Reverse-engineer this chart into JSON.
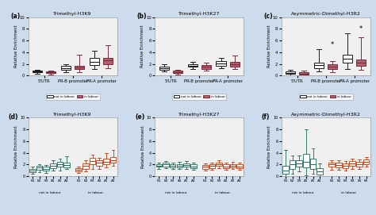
{
  "background_color": "#cddcec",
  "panel_bg": "#f0f0f0",
  "titles": {
    "a": "Trimethyl-H3K9",
    "b": "Trimethyl-H3K27",
    "c": "Asymmetric-Dimethyl-H3R2",
    "d": "Trimethyl-H3K9",
    "e": "Trimethyl-H3K27",
    "f": "Asymmetric-Dimethyl-H3R2"
  },
  "panels_abc": {
    "categories": [
      "5'UTR",
      "PR-B promoter",
      "PR-A promoter"
    ],
    "ylabel": "Relative Enrichment",
    "ylim": [
      0,
      10
    ],
    "yticks": [
      0,
      2,
      4,
      6,
      8,
      10
    ],
    "color_not_in_labour": "#1a1a1a",
    "color_in_labour": "#7a2a38",
    "color_in_labour_fill": "#b06070",
    "boxes": {
      "a": {
        "not_in_labour": [
          {
            "med": 0.7,
            "q1": 0.55,
            "q3": 0.85,
            "whislo": 0.3,
            "whishi": 0.95
          },
          {
            "med": 1.3,
            "q1": 1.0,
            "q3": 1.65,
            "whislo": 0.6,
            "whishi": 2.0
          },
          {
            "med": 2.4,
            "q1": 1.8,
            "q3": 3.0,
            "whislo": 1.2,
            "whishi": 4.2
          }
        ],
        "in_labour": [
          {
            "med": 0.6,
            "q1": 0.4,
            "q3": 0.72,
            "whislo": 0.2,
            "whishi": 0.82
          },
          {
            "med": 1.4,
            "q1": 1.1,
            "q3": 1.75,
            "whislo": 0.6,
            "whishi": 3.6
          },
          {
            "med": 2.6,
            "q1": 2.0,
            "q3": 3.1,
            "whislo": 1.3,
            "whishi": 5.2
          }
        ]
      },
      "b": {
        "not_in_labour": [
          {
            "med": 1.3,
            "q1": 1.0,
            "q3": 1.6,
            "whislo": 0.7,
            "whishi": 1.9
          },
          {
            "med": 1.75,
            "q1": 1.5,
            "q3": 2.0,
            "whislo": 1.1,
            "whishi": 2.3
          },
          {
            "med": 2.1,
            "q1": 1.7,
            "q3": 2.5,
            "whislo": 1.3,
            "whishi": 3.1
          }
        ],
        "in_labour": [
          {
            "med": 0.65,
            "q1": 0.45,
            "q3": 0.82,
            "whislo": 0.25,
            "whishi": 1.0
          },
          {
            "med": 1.55,
            "q1": 1.2,
            "q3": 1.85,
            "whislo": 0.9,
            "whishi": 2.2
          },
          {
            "med": 1.9,
            "q1": 1.55,
            "q3": 2.3,
            "whislo": 1.1,
            "whishi": 3.5
          }
        ]
      },
      "c": {
        "not_in_labour": [
          {
            "med": 0.5,
            "q1": 0.3,
            "q3": 0.75,
            "whislo": 0.1,
            "whishi": 1.0
          },
          {
            "med": 1.8,
            "q1": 1.3,
            "q3": 2.2,
            "whislo": 0.7,
            "whishi": 4.5
          },
          {
            "med": 2.9,
            "q1": 2.2,
            "q3": 3.6,
            "whislo": 1.2,
            "whishi": 7.2
          }
        ],
        "in_labour": [
          {
            "med": 0.35,
            "q1": 0.18,
            "q3": 0.58,
            "whislo": 0.05,
            "whishi": 0.85
          },
          {
            "med": 1.5,
            "q1": 1.1,
            "q3": 1.9,
            "whislo": 0.6,
            "whishi": 2.5
          },
          {
            "med": 2.2,
            "q1": 1.7,
            "q3": 2.8,
            "whislo": 1.0,
            "whishi": 6.5
          }
        ]
      }
    }
  },
  "panels_def": {
    "ylabel": "Relative Enrichment",
    "ylim": [
      0,
      10
    ],
    "yticks": [
      0,
      2,
      4,
      6,
      8,
      10
    ],
    "color_not_in_labour": "#1a6b5a",
    "color_in_labour": "#cc3300",
    "d": {
      "labels_not": [
        "B1",
        "B2",
        "B3",
        "A1",
        "A2",
        "A3"
      ],
      "labels_in": [
        "B1",
        "B2",
        "B3",
        "A1",
        "A2",
        "A3"
      ],
      "not_in_labour": [
        {
          "med": 1.0,
          "q1": 0.7,
          "q3": 1.3,
          "whislo": 0.5,
          "whishi": 1.6
        },
        {
          "med": 1.5,
          "q1": 1.1,
          "q3": 1.8,
          "whislo": 0.7,
          "whishi": 2.1
        },
        {
          "med": 1.3,
          "q1": 1.0,
          "q3": 1.6,
          "whislo": 0.6,
          "whishi": 1.9
        },
        {
          "med": 1.8,
          "q1": 1.4,
          "q3": 2.2,
          "whislo": 1.0,
          "whishi": 2.7
        },
        {
          "med": 2.0,
          "q1": 1.6,
          "q3": 2.5,
          "whislo": 1.0,
          "whishi": 3.0
        },
        {
          "med": 1.9,
          "q1": 1.5,
          "q3": 2.3,
          "whislo": 1.2,
          "whishi": 3.4
        }
      ],
      "in_labour": [
        {
          "med": 1.1,
          "q1": 0.8,
          "q3": 1.4,
          "whislo": 0.6,
          "whishi": 1.7
        },
        {
          "med": 1.8,
          "q1": 1.3,
          "q3": 2.2,
          "whislo": 0.9,
          "whishi": 2.7
        },
        {
          "med": 2.6,
          "q1": 2.0,
          "q3": 3.1,
          "whislo": 1.2,
          "whishi": 3.7
        },
        {
          "med": 2.3,
          "q1": 1.8,
          "q3": 2.8,
          "whislo": 1.2,
          "whishi": 3.2
        },
        {
          "med": 2.5,
          "q1": 2.0,
          "q3": 3.0,
          "whislo": 1.5,
          "whishi": 4.0
        },
        {
          "med": 2.8,
          "q1": 2.3,
          "q3": 3.3,
          "whislo": 1.8,
          "whishi": 4.5
        }
      ]
    },
    "e": {
      "labels_not": [
        "B1",
        "B2",
        "B3",
        "A1",
        "A2",
        "A3"
      ],
      "labels_in": [
        "B1",
        "B2",
        "B3",
        "A1",
        "A2",
        "A3"
      ],
      "not_in_labour": [
        {
          "med": 1.85,
          "q1": 1.6,
          "q3": 2.1,
          "whislo": 1.3,
          "whishi": 2.4
        },
        {
          "med": 2.0,
          "q1": 1.7,
          "q3": 2.3,
          "whislo": 1.4,
          "whishi": 2.6
        },
        {
          "med": 1.8,
          "q1": 1.5,
          "q3": 2.1,
          "whislo": 1.2,
          "whishi": 2.4
        },
        {
          "med": 1.8,
          "q1": 1.5,
          "q3": 2.1,
          "whislo": 1.2,
          "whishi": 2.5
        },
        {
          "med": 1.9,
          "q1": 1.6,
          "q3": 2.2,
          "whislo": 1.3,
          "whishi": 2.6
        },
        {
          "med": 1.7,
          "q1": 1.4,
          "q3": 2.0,
          "whislo": 1.1,
          "whishi": 2.3
        }
      ],
      "in_labour": [
        {
          "med": 1.6,
          "q1": 1.3,
          "q3": 1.9,
          "whislo": 1.0,
          "whishi": 2.2
        },
        {
          "med": 1.75,
          "q1": 1.4,
          "q3": 2.0,
          "whislo": 1.1,
          "whishi": 2.4
        },
        {
          "med": 2.1,
          "q1": 1.8,
          "q3": 2.4,
          "whislo": 1.4,
          "whishi": 2.8
        },
        {
          "med": 1.7,
          "q1": 1.4,
          "q3": 2.0,
          "whislo": 1.1,
          "whishi": 2.3
        },
        {
          "med": 1.85,
          "q1": 1.55,
          "q3": 2.1,
          "whislo": 1.2,
          "whishi": 2.5
        },
        {
          "med": 1.7,
          "q1": 1.4,
          "q3": 2.0,
          "whislo": 1.1,
          "whishi": 2.4
        }
      ]
    },
    "f": {
      "labels_not": [
        "B1",
        "B2",
        "B3",
        "A1",
        "A2",
        "A3"
      ],
      "labels_in": [
        "B1",
        "B2",
        "B3",
        "B4",
        "B5",
        "B6"
      ],
      "not_in_labour": [
        {
          "med": 1.0,
          "q1": 0.4,
          "q3": 1.8,
          "whislo": 0.05,
          "whishi": 4.5
        },
        {
          "med": 2.0,
          "q1": 1.3,
          "q3": 2.8,
          "whislo": 0.5,
          "whishi": 3.5
        },
        {
          "med": 2.2,
          "q1": 1.7,
          "q3": 2.8,
          "whislo": 0.8,
          "whishi": 3.5
        },
        {
          "med": 2.5,
          "q1": 1.5,
          "q3": 3.8,
          "whislo": 0.2,
          "whishi": 8.0
        },
        {
          "med": 2.0,
          "q1": 1.2,
          "q3": 3.0,
          "whislo": 0.5,
          "whishi": 4.8
        },
        {
          "med": 0.8,
          "q1": 0.3,
          "q3": 1.4,
          "whislo": 0.05,
          "whishi": 2.2
        }
      ],
      "in_labour": [
        {
          "med": 2.0,
          "q1": 1.6,
          "q3": 2.4,
          "whislo": 1.1,
          "whishi": 2.8
        },
        {
          "med": 1.9,
          "q1": 1.5,
          "q3": 2.3,
          "whislo": 1.1,
          "whishi": 2.7
        },
        {
          "med": 1.8,
          "q1": 1.4,
          "q3": 2.2,
          "whislo": 1.0,
          "whishi": 2.6
        },
        {
          "med": 2.2,
          "q1": 1.8,
          "q3": 2.6,
          "whislo": 1.3,
          "whishi": 3.0
        },
        {
          "med": 2.1,
          "q1": 1.7,
          "q3": 2.5,
          "whislo": 1.2,
          "whishi": 2.9
        },
        {
          "med": 2.5,
          "q1": 2.1,
          "q3": 2.9,
          "whislo": 1.6,
          "whishi": 3.3
        }
      ]
    }
  }
}
